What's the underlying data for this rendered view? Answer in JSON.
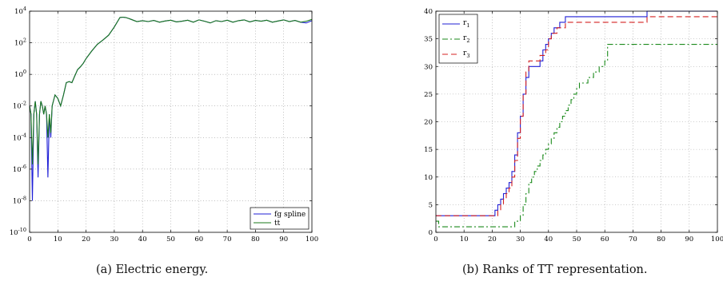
{
  "chart_data": [
    {
      "type": "line",
      "panel_label": "(a)",
      "caption": "Electric energy.",
      "yscale": "log",
      "xlim": [
        0,
        100
      ],
      "ylim": [
        1e-10,
        10000
      ],
      "xticks": [
        "0",
        "10",
        "20",
        "30",
        "40",
        "50",
        "60",
        "70",
        "80",
        "90",
        "100"
      ],
      "yticks": [
        {
          "value": 1e-10,
          "base": "10",
          "exp": "-10"
        },
        {
          "value": 1e-08,
          "base": "10",
          "exp": "-8"
        },
        {
          "value": 1e-06,
          "base": "10",
          "exp": "-6"
        },
        {
          "value": 0.0001,
          "base": "10",
          "exp": "-4"
        },
        {
          "value": 0.01,
          "base": "10",
          "exp": "-2"
        },
        {
          "value": 1,
          "base": "10",
          "exp": "0"
        },
        {
          "value": 100,
          "base": "10",
          "exp": "2"
        },
        {
          "value": 10000,
          "base": "10",
          "exp": "4"
        }
      ],
      "grid": true,
      "legend_position": "bottom-right",
      "series": [
        {
          "name": "fg spline",
          "color": "#1f1fd6",
          "x": [
            0,
            0.5,
            1,
            1.5,
            2,
            2.5,
            3,
            3.5,
            4,
            4.5,
            5,
            5.5,
            6,
            6.5,
            7,
            7.5,
            8,
            9,
            10,
            11,
            12,
            13,
            14,
            15,
            16,
            17,
            18,
            19,
            20,
            22,
            24,
            26,
            28,
            30,
            32,
            33,
            34,
            35,
            36,
            38,
            40,
            42,
            44,
            46,
            48,
            50,
            52,
            54,
            56,
            58,
            60,
            62,
            64,
            66,
            68,
            70,
            72,
            74,
            76,
            78,
            80,
            82,
            84,
            86,
            88,
            90,
            92,
            94,
            96,
            98,
            100
          ],
          "y": [
            0.01,
            0.003,
            1e-08,
            0.003,
            0.02,
            0.003,
            3e-07,
            0.003,
            0.02,
            0.01,
            0.003,
            0.01,
            0.003,
            3e-07,
            0.003,
            0.0001,
            0.01,
            0.05,
            0.03,
            0.01,
            0.05,
            0.3,
            0.35,
            0.3,
            0.8,
            2,
            3,
            5,
            10,
            30,
            80,
            150,
            300,
            1000,
            4000,
            4200,
            4000,
            3500,
            3000,
            2200,
            2500,
            2200,
            2600,
            2000,
            2400,
            2700,
            2100,
            2300,
            2700,
            2000,
            2800,
            2300,
            1800,
            2500,
            2200,
            2700,
            2000,
            2500,
            2800,
            2100,
            2600,
            2300,
            2700,
            2000,
            2400,
            2800,
            2200,
            2600,
            2000,
            1800,
            2500
          ]
        },
        {
          "name": "tt",
          "color": "#1b7a1b",
          "x": [
            0,
            0.5,
            1,
            1.5,
            2,
            2.5,
            3,
            3.5,
            4,
            4.5,
            5,
            5.5,
            6,
            6.5,
            7,
            7.5,
            8,
            9,
            10,
            11,
            12,
            13,
            14,
            15,
            16,
            17,
            18,
            19,
            20,
            22,
            24,
            26,
            28,
            30,
            32,
            33,
            34,
            35,
            36,
            38,
            40,
            42,
            44,
            46,
            48,
            50,
            52,
            54,
            56,
            58,
            60,
            62,
            64,
            66,
            68,
            70,
            72,
            74,
            76,
            78,
            80,
            82,
            84,
            86,
            88,
            90,
            92,
            94,
            96,
            98,
            100
          ],
          "y": [
            0.01,
            0.003,
            2e-06,
            0.003,
            0.02,
            0.003,
            2e-06,
            0.003,
            0.02,
            0.01,
            0.003,
            0.01,
            0.003,
            0.0001,
            0.003,
            0.0002,
            0.01,
            0.05,
            0.03,
            0.01,
            0.05,
            0.3,
            0.35,
            0.3,
            0.8,
            2,
            3,
            5,
            10,
            30,
            80,
            150,
            300,
            1000,
            4000,
            4200,
            4000,
            3500,
            3000,
            2200,
            2500,
            2200,
            2600,
            2000,
            2400,
            2700,
            2100,
            2300,
            2700,
            2000,
            2800,
            2300,
            1800,
            2500,
            2200,
            2700,
            2000,
            2500,
            2800,
            2100,
            2600,
            2300,
            2700,
            2000,
            2400,
            2800,
            2200,
            2600,
            2000,
            2300,
            3000
          ]
        }
      ]
    },
    {
      "type": "line",
      "panel_label": "(b)",
      "caption": "Ranks of TT representation.",
      "yscale": "linear",
      "xlim": [
        0,
        100
      ],
      "ylim": [
        0,
        40
      ],
      "xticks": [
        "0",
        "10",
        "20",
        "30",
        "40",
        "50",
        "60",
        "70",
        "80",
        "90",
        "100"
      ],
      "yticks": [
        "0",
        "5",
        "10",
        "15",
        "20",
        "25",
        "30",
        "35",
        "40"
      ],
      "grid": true,
      "legend_position": "top-left",
      "series": [
        {
          "name": "r",
          "subscript": "1",
          "color": "#1f1fd6",
          "dash": "none",
          "step": true,
          "x": [
            0,
            20,
            21,
            22,
            23,
            24,
            25,
            26,
            27,
            28,
            29,
            30,
            31,
            32,
            33,
            35,
            36,
            37,
            38,
            39,
            40,
            41,
            42,
            43,
            44,
            46,
            47,
            55,
            65,
            75,
            100
          ],
          "y": [
            3,
            3,
            4,
            5,
            6,
            7,
            8,
            9,
            11,
            14,
            18,
            21,
            25,
            28,
            30,
            30,
            30,
            31,
            33,
            34,
            35,
            36,
            37,
            37,
            38,
            39,
            39,
            39,
            39,
            40,
            40
          ]
        },
        {
          "name": "r",
          "subscript": "2",
          "color": "#1b8a1b",
          "dash": "7,3,2,3",
          "step": true,
          "x": [
            0,
            1,
            27,
            28,
            30,
            31,
            32,
            33,
            34,
            35,
            36,
            37,
            38,
            39,
            40,
            41,
            42,
            43,
            44,
            45,
            46,
            47,
            48,
            49,
            50,
            51,
            52,
            54,
            56,
            58,
            60,
            61,
            100
          ],
          "y": [
            2,
            1,
            1,
            2,
            3,
            5,
            7,
            9,
            10,
            11,
            12,
            13,
            14,
            15,
            16,
            17,
            18,
            19,
            20,
            21,
            22,
            23,
            24,
            25,
            26,
            27,
            27,
            28,
            29,
            30,
            31,
            34,
            34
          ]
        },
        {
          "name": "r",
          "subscript": "3",
          "color": "#d42020",
          "dash": "7,4",
          "step": true,
          "x": [
            0,
            21,
            22,
            23,
            24,
            25,
            26,
            27,
            28,
            29,
            30,
            31,
            32,
            33,
            35,
            36,
            37,
            38,
            39,
            40,
            41,
            42,
            43,
            44,
            46,
            48,
            52,
            60,
            75,
            100
          ],
          "y": [
            3,
            3,
            4,
            5,
            6,
            7,
            8,
            10,
            13,
            17,
            21,
            25,
            29,
            31,
            31,
            31,
            32,
            32,
            33,
            35,
            36,
            36,
            37,
            37,
            38,
            38,
            38,
            38,
            39,
            39
          ]
        }
      ]
    }
  ]
}
